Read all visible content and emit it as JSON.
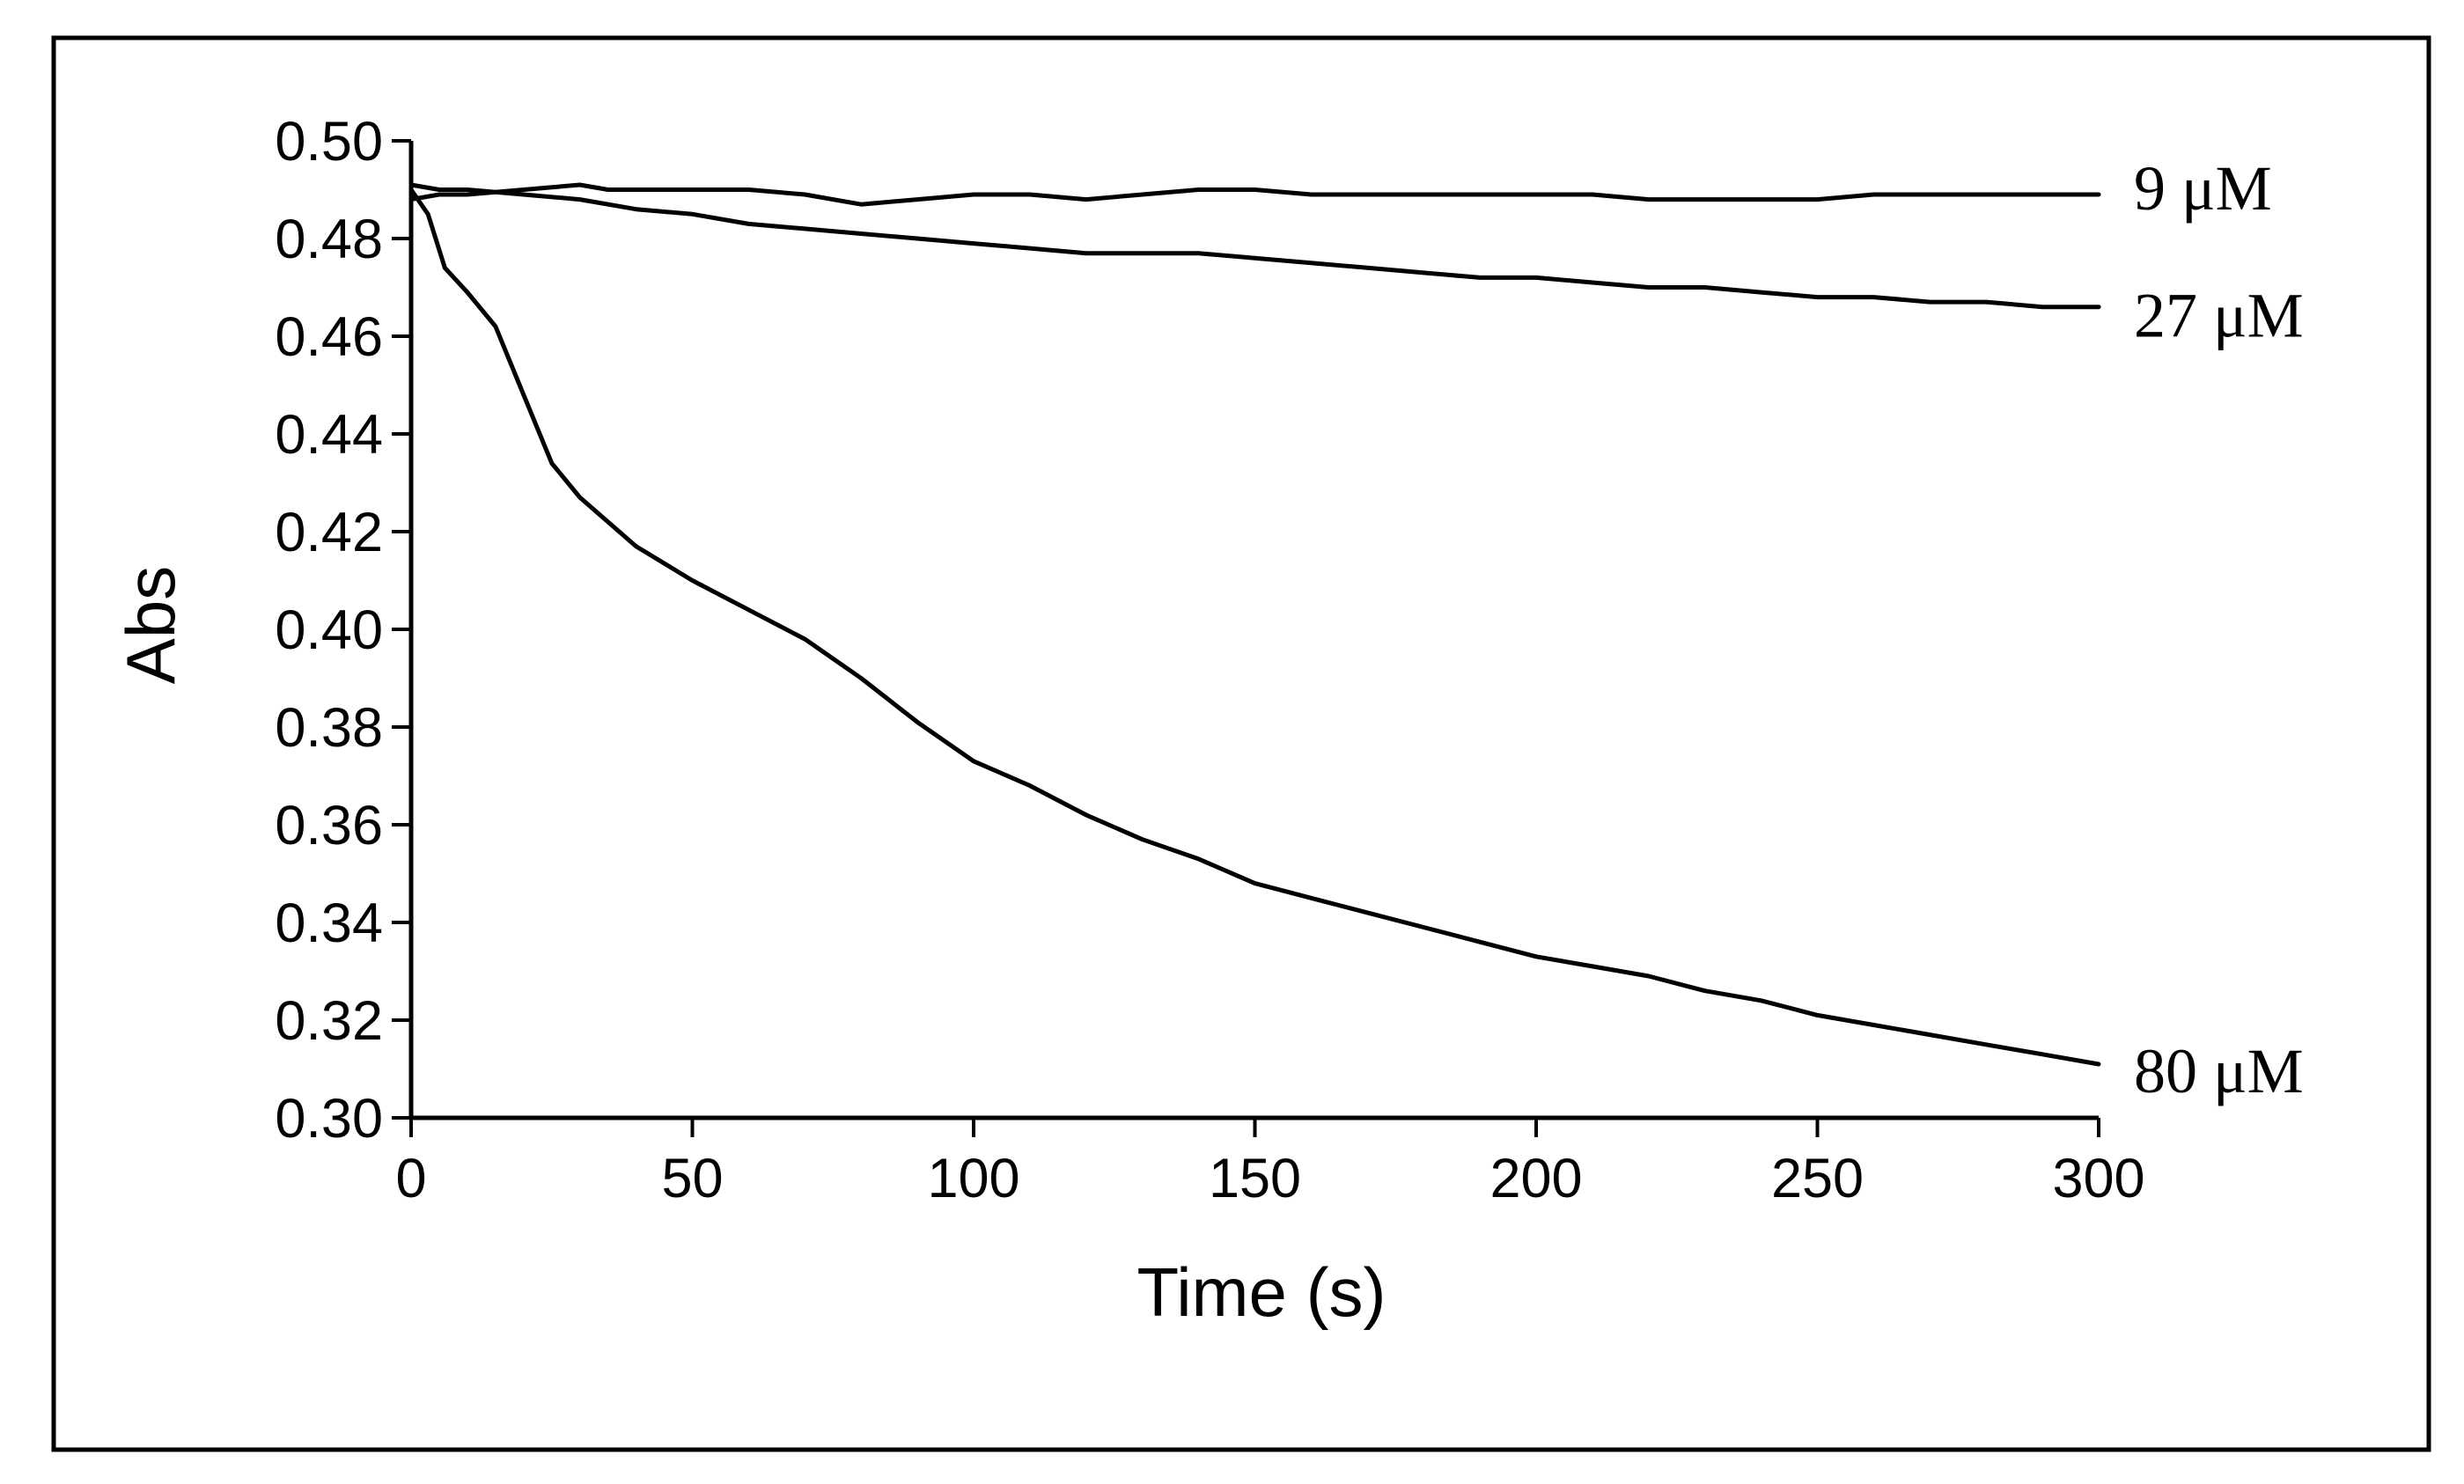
{
  "chart_data": {
    "type": "line",
    "title": "",
    "xlabel": "Time (s)",
    "ylabel": "Abs",
    "xlim": [
      0,
      300
    ],
    "ylim": [
      0.3,
      0.5
    ],
    "x_ticks": [
      "0",
      "50",
      "100",
      "150",
      "200",
      "250",
      "300"
    ],
    "y_ticks": [
      "0.30",
      "0.32",
      "0.34",
      "0.36",
      "0.38",
      "0.40",
      "0.42",
      "0.44",
      "0.46",
      "0.48",
      "0.50"
    ],
    "grid": false,
    "legend": "none",
    "line_color": "#000000",
    "series": [
      {
        "name": "9 μM",
        "x": [
          0,
          5,
          10,
          20,
          30,
          35,
          40,
          50,
          60,
          70,
          80,
          90,
          100,
          110,
          120,
          130,
          140,
          150,
          160,
          170,
          180,
          190,
          200,
          210,
          220,
          230,
          240,
          250,
          260,
          270,
          280,
          290,
          300
        ],
        "values": [
          0.488,
          0.489,
          0.489,
          0.49,
          0.491,
          0.49,
          0.49,
          0.49,
          0.49,
          0.489,
          0.487,
          0.488,
          0.489,
          0.489,
          0.488,
          0.489,
          0.49,
          0.49,
          0.489,
          0.489,
          0.489,
          0.489,
          0.489,
          0.489,
          0.488,
          0.488,
          0.488,
          0.488,
          0.489,
          0.489,
          0.489,
          0.489,
          0.489
        ]
      },
      {
        "name": "27 μM",
        "x": [
          0,
          5,
          10,
          20,
          30,
          40,
          50,
          60,
          70,
          80,
          90,
          100,
          110,
          120,
          130,
          140,
          150,
          160,
          170,
          180,
          190,
          200,
          210,
          220,
          230,
          240,
          250,
          260,
          270,
          280,
          290,
          300
        ],
        "values": [
          0.491,
          0.49,
          0.49,
          0.489,
          0.488,
          0.486,
          0.485,
          0.483,
          0.482,
          0.481,
          0.48,
          0.479,
          0.478,
          0.477,
          0.477,
          0.477,
          0.476,
          0.475,
          0.474,
          0.473,
          0.472,
          0.472,
          0.471,
          0.47,
          0.47,
          0.469,
          0.468,
          0.468,
          0.467,
          0.467,
          0.466,
          0.466
        ]
      },
      {
        "name": "80 μM",
        "x": [
          0,
          3,
          6,
          10,
          15,
          20,
          25,
          30,
          40,
          50,
          60,
          70,
          80,
          90,
          100,
          110,
          120,
          130,
          140,
          150,
          160,
          170,
          180,
          190,
          200,
          210,
          220,
          230,
          240,
          250,
          260,
          270,
          280,
          290,
          300
        ],
        "values": [
          0.49,
          0.485,
          0.474,
          0.469,
          0.462,
          0.448,
          0.434,
          0.427,
          0.417,
          0.41,
          0.404,
          0.398,
          0.39,
          0.381,
          0.373,
          0.368,
          0.362,
          0.357,
          0.353,
          0.348,
          0.345,
          0.342,
          0.339,
          0.336,
          0.333,
          0.331,
          0.329,
          0.326,
          0.324,
          0.321,
          0.319,
          0.317,
          0.315,
          0.313,
          0.311
        ]
      }
    ]
  }
}
